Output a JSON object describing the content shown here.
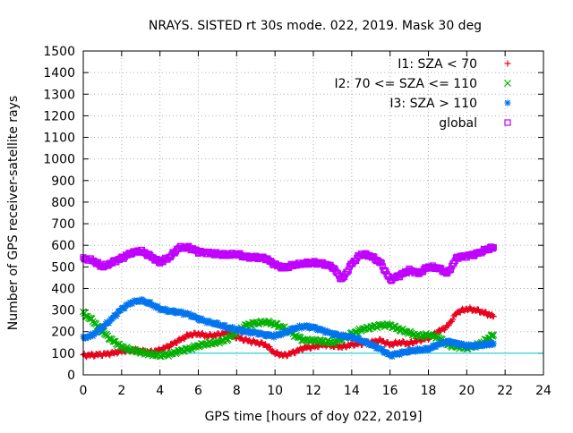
{
  "chart_data": {
    "type": "scatter",
    "title": "NRAYS. SISTED rt 30s mode. 022, 2019. Mask 30 deg",
    "xlabel": "GPS time [hours of doy 022, 2019]",
    "ylabel": "Number of GPS receiver-satellite rays",
    "xlim": [
      0,
      24
    ],
    "ylim": [
      0,
      1500
    ],
    "xticks": [
      0,
      2,
      4,
      6,
      8,
      10,
      12,
      14,
      16,
      18,
      20,
      22,
      24
    ],
    "yticks": [
      0,
      100,
      200,
      300,
      400,
      500,
      600,
      700,
      800,
      900,
      1000,
      1100,
      1200,
      1300,
      1400,
      1500
    ],
    "reference_line": {
      "y": 100,
      "color": "#00c8c8"
    },
    "legend_position": "top-right",
    "series": [
      {
        "name": "I1: SZA < 70",
        "marker": "+",
        "color": "#e8001c",
        "points": [
          [
            0,
            90
          ],
          [
            0.5,
            92
          ],
          [
            1,
            95
          ],
          [
            1.5,
            100
          ],
          [
            2,
            110
          ],
          [
            2.5,
            115
          ],
          [
            3,
            110
          ],
          [
            3.5,
            105
          ],
          [
            4,
            115
          ],
          [
            4.5,
            135
          ],
          [
            5,
            160
          ],
          [
            5.5,
            185
          ],
          [
            6,
            190
          ],
          [
            6.5,
            180
          ],
          [
            7,
            185
          ],
          [
            7.5,
            195
          ],
          [
            8,
            175
          ],
          [
            8.5,
            160
          ],
          [
            9,
            150
          ],
          [
            9.5,
            140
          ],
          [
            10,
            100
          ],
          [
            10.5,
            90
          ],
          [
            11,
            105
          ],
          [
            11.5,
            125
          ],
          [
            12,
            130
          ],
          [
            12.5,
            140
          ],
          [
            13,
            135
          ],
          [
            13.5,
            130
          ],
          [
            14,
            140
          ],
          [
            14.5,
            145
          ],
          [
            15,
            150
          ],
          [
            15.5,
            160
          ],
          [
            16,
            140
          ],
          [
            16.5,
            150
          ],
          [
            17,
            145
          ],
          [
            17.5,
            160
          ],
          [
            18,
            170
          ],
          [
            18.5,
            200
          ],
          [
            19,
            225
          ],
          [
            19.5,
            290
          ],
          [
            20,
            305
          ],
          [
            20.5,
            300
          ],
          [
            21,
            285
          ],
          [
            21.4,
            270
          ]
        ]
      },
      {
        "name": "I2: 70 <= SZA <= 110",
        "marker": "x",
        "color": "#00b000",
        "points": [
          [
            0,
            285
          ],
          [
            0.5,
            250
          ],
          [
            1,
            200
          ],
          [
            1.5,
            160
          ],
          [
            2,
            130
          ],
          [
            2.5,
            115
          ],
          [
            3,
            105
          ],
          [
            3.5,
            95
          ],
          [
            4,
            90
          ],
          [
            4.5,
            95
          ],
          [
            5,
            110
          ],
          [
            5.5,
            120
          ],
          [
            6,
            135
          ],
          [
            6.5,
            145
          ],
          [
            7,
            150
          ],
          [
            7.5,
            165
          ],
          [
            8,
            200
          ],
          [
            8.5,
            230
          ],
          [
            9,
            240
          ],
          [
            9.5,
            245
          ],
          [
            10,
            235
          ],
          [
            10.5,
            215
          ],
          [
            11,
            185
          ],
          [
            11.5,
            160
          ],
          [
            12,
            160
          ],
          [
            12.5,
            155
          ],
          [
            13,
            150
          ],
          [
            13.5,
            165
          ],
          [
            14,
            190
          ],
          [
            14.5,
            210
          ],
          [
            15,
            220
          ],
          [
            15.5,
            230
          ],
          [
            16,
            230
          ],
          [
            16.5,
            210
          ],
          [
            17,
            195
          ],
          [
            17.5,
            180
          ],
          [
            18,
            185
          ],
          [
            18.5,
            175
          ],
          [
            19,
            140
          ],
          [
            19.5,
            130
          ],
          [
            20,
            125
          ],
          [
            20.5,
            135
          ],
          [
            21,
            160
          ],
          [
            21.4,
            185
          ]
        ]
      },
      {
        "name": "I3: SZA > 110",
        "marker": "*",
        "color": "#0074ee",
        "points": [
          [
            0,
            170
          ],
          [
            0.5,
            185
          ],
          [
            1,
            220
          ],
          [
            1.5,
            260
          ],
          [
            2,
            305
          ],
          [
            2.5,
            335
          ],
          [
            3,
            345
          ],
          [
            3.5,
            330
          ],
          [
            4,
            305
          ],
          [
            4.5,
            295
          ],
          [
            5,
            290
          ],
          [
            5.5,
            280
          ],
          [
            6,
            260
          ],
          [
            6.5,
            245
          ],
          [
            7,
            235
          ],
          [
            7.5,
            220
          ],
          [
            8,
            210
          ],
          [
            8.5,
            200
          ],
          [
            9,
            195
          ],
          [
            9.5,
            185
          ],
          [
            10,
            180
          ],
          [
            10.5,
            195
          ],
          [
            11,
            215
          ],
          [
            11.5,
            225
          ],
          [
            12,
            220
          ],
          [
            12.5,
            205
          ],
          [
            13,
            190
          ],
          [
            13.5,
            180
          ],
          [
            14,
            175
          ],
          [
            14.5,
            160
          ],
          [
            15,
            140
          ],
          [
            15.5,
            120
          ],
          [
            16,
            90
          ],
          [
            16.5,
            100
          ],
          [
            17,
            110
          ],
          [
            17.5,
            115
          ],
          [
            18,
            120
          ],
          [
            18.5,
            140
          ],
          [
            19,
            155
          ],
          [
            19.5,
            145
          ],
          [
            20,
            135
          ],
          [
            20.5,
            135
          ],
          [
            21,
            140
          ],
          [
            21.4,
            145
          ]
        ]
      },
      {
        "name": "global",
        "marker": "square",
        "color": "#c000ff",
        "points": [
          [
            0,
            540
          ],
          [
            0.5,
            530
          ],
          [
            1,
            500
          ],
          [
            1.5,
            520
          ],
          [
            2,
            540
          ],
          [
            2.5,
            565
          ],
          [
            3,
            575
          ],
          [
            3.5,
            550
          ],
          [
            4,
            520
          ],
          [
            4.5,
            545
          ],
          [
            5,
            590
          ],
          [
            5.5,
            590
          ],
          [
            6,
            570
          ],
          [
            6.5,
            565
          ],
          [
            7,
            560
          ],
          [
            7.5,
            555
          ],
          [
            8,
            560
          ],
          [
            8.5,
            545
          ],
          [
            9,
            545
          ],
          [
            9.5,
            540
          ],
          [
            10,
            510
          ],
          [
            10.5,
            495
          ],
          [
            11,
            510
          ],
          [
            11.5,
            515
          ],
          [
            12,
            520
          ],
          [
            12.5,
            515
          ],
          [
            13,
            500
          ],
          [
            13.5,
            440
          ],
          [
            14,
            515
          ],
          [
            14.5,
            560
          ],
          [
            15,
            550
          ],
          [
            15.5,
            520
          ],
          [
            16,
            440
          ],
          [
            16.5,
            460
          ],
          [
            17,
            485
          ],
          [
            17.5,
            470
          ],
          [
            18,
            500
          ],
          [
            18.5,
            495
          ],
          [
            19,
            470
          ],
          [
            19.5,
            545
          ],
          [
            20,
            550
          ],
          [
            20.5,
            560
          ],
          [
            21,
            580
          ],
          [
            21.4,
            590
          ]
        ]
      }
    ]
  }
}
